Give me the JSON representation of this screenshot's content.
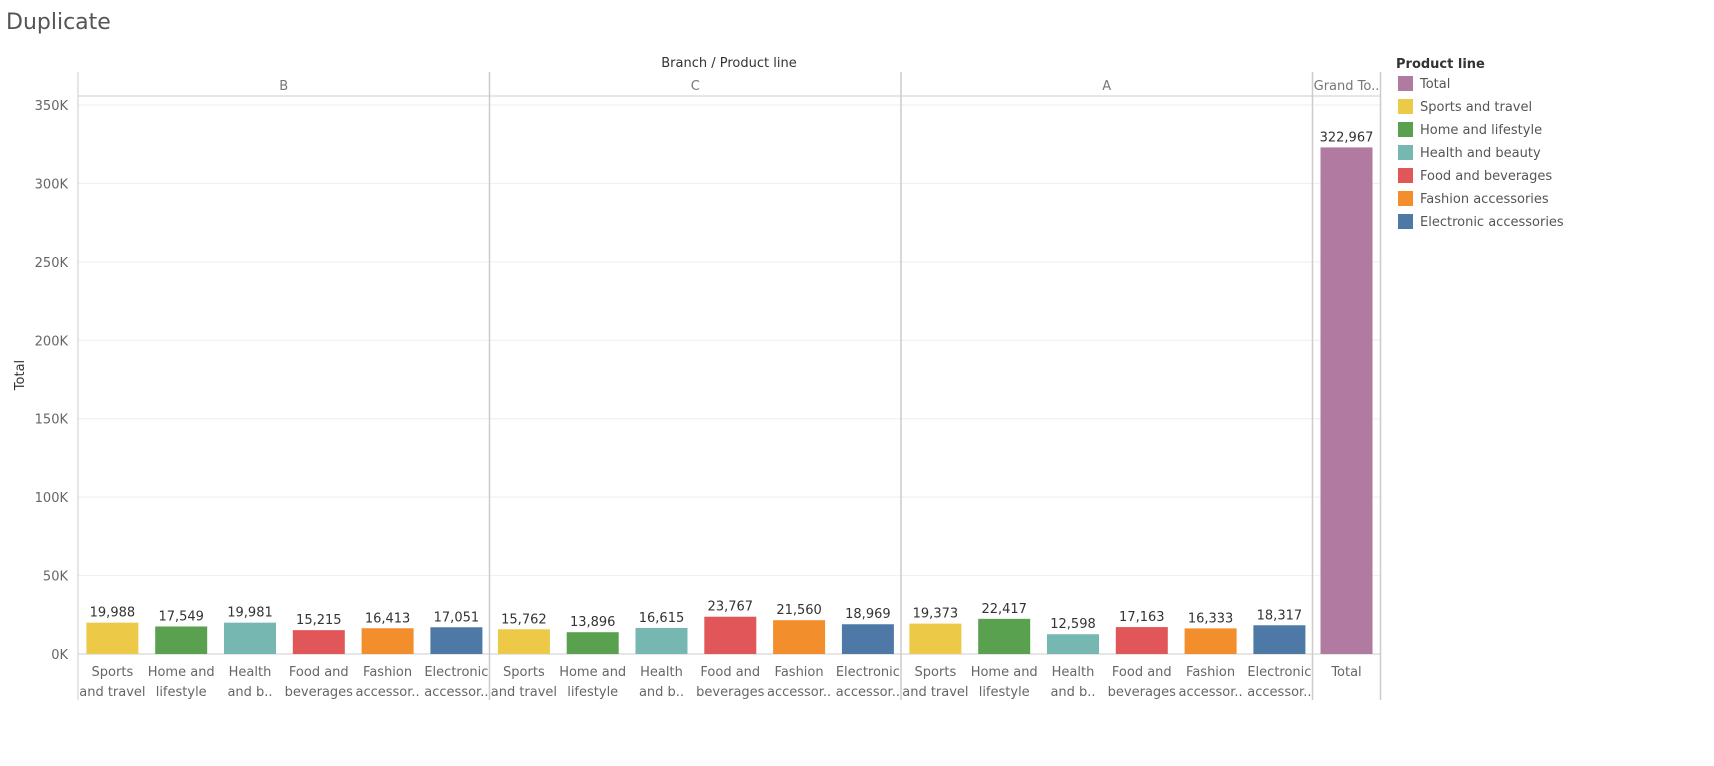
{
  "page": {
    "title": "Duplicate"
  },
  "chart_data": {
    "type": "bar",
    "column_header": "Branch  /  Product line",
    "ylabel": "Total",
    "ylim": [
      0,
      350000
    ],
    "yticks": [
      0,
      50000,
      100000,
      150000,
      200000,
      250000,
      300000,
      350000
    ],
    "ytick_labels": [
      "0K",
      "50K",
      "100K",
      "150K",
      "200K",
      "250K",
      "300K",
      "350K"
    ],
    "grid": true,
    "legend": {
      "title": "Product line",
      "position": "right",
      "items": [
        {
          "label": "Total",
          "color": "#b07aa1"
        },
        {
          "label": "Sports and travel",
          "color": "#edc948"
        },
        {
          "label": "Home and lifestyle",
          "color": "#59a14f"
        },
        {
          "label": "Health and beauty",
          "color": "#76b7b2"
        },
        {
          "label": "Food and beverages",
          "color": "#e15759"
        },
        {
          "label": "Fashion accessories",
          "color": "#f28e2b"
        },
        {
          "label": "Electronic accessories",
          "color": "#4e79a7"
        }
      ]
    },
    "panes": [
      {
        "header": "B",
        "bars": [
          {
            "category": "Sports and travel",
            "label_lines": [
              "Sports",
              "and travel"
            ],
            "value": 19988,
            "value_label": "19,988"
          },
          {
            "category": "Home and lifestyle",
            "label_lines": [
              "Home and",
              "lifestyle"
            ],
            "value": 17549,
            "value_label": "17,549"
          },
          {
            "category": "Health and beauty",
            "label_lines": [
              "Health",
              "and b.."
            ],
            "value": 19981,
            "value_label": "19,981"
          },
          {
            "category": "Food and beverages",
            "label_lines": [
              "Food and",
              "beverages"
            ],
            "value": 15215,
            "value_label": "15,215"
          },
          {
            "category": "Fashion accessories",
            "label_lines": [
              "Fashion",
              "accessor.."
            ],
            "value": 16413,
            "value_label": "16,413"
          },
          {
            "category": "Electronic accessories",
            "label_lines": [
              "Electronic",
              "accessor.."
            ],
            "value": 17051,
            "value_label": "17,051"
          }
        ]
      },
      {
        "header": "C",
        "bars": [
          {
            "category": "Sports and travel",
            "label_lines": [
              "Sports",
              "and travel"
            ],
            "value": 15762,
            "value_label": "15,762"
          },
          {
            "category": "Home and lifestyle",
            "label_lines": [
              "Home and",
              "lifestyle"
            ],
            "value": 13896,
            "value_label": "13,896"
          },
          {
            "category": "Health and beauty",
            "label_lines": [
              "Health",
              "and b.."
            ],
            "value": 16615,
            "value_label": "16,615"
          },
          {
            "category": "Food and beverages",
            "label_lines": [
              "Food and",
              "beverages"
            ],
            "value": 23767,
            "value_label": "23,767"
          },
          {
            "category": "Fashion accessories",
            "label_lines": [
              "Fashion",
              "accessor.."
            ],
            "value": 21560,
            "value_label": "21,560"
          },
          {
            "category": "Electronic accessories",
            "label_lines": [
              "Electronic",
              "accessor.."
            ],
            "value": 18969,
            "value_label": "18,969"
          }
        ]
      },
      {
        "header": "A",
        "bars": [
          {
            "category": "Sports and travel",
            "label_lines": [
              "Sports",
              "and travel"
            ],
            "value": 19373,
            "value_label": "19,373"
          },
          {
            "category": "Home and lifestyle",
            "label_lines": [
              "Home and",
              "lifestyle"
            ],
            "value": 22417,
            "value_label": "22,417"
          },
          {
            "category": "Health and beauty",
            "label_lines": [
              "Health",
              "and b.."
            ],
            "value": 12598,
            "value_label": "12,598"
          },
          {
            "category": "Food and beverages",
            "label_lines": [
              "Food and",
              "beverages"
            ],
            "value": 17163,
            "value_label": "17,163"
          },
          {
            "category": "Fashion accessories",
            "label_lines": [
              "Fashion",
              "accessor.."
            ],
            "value": 16333,
            "value_label": "16,333"
          },
          {
            "category": "Electronic accessories",
            "label_lines": [
              "Electronic",
              "accessor.."
            ],
            "value": 18317,
            "value_label": "18,317"
          }
        ]
      },
      {
        "header": "Grand To..",
        "bars": [
          {
            "category": "Total",
            "label_lines": [
              "Total"
            ],
            "value": 322967,
            "value_label": "322,967"
          }
        ]
      }
    ]
  }
}
